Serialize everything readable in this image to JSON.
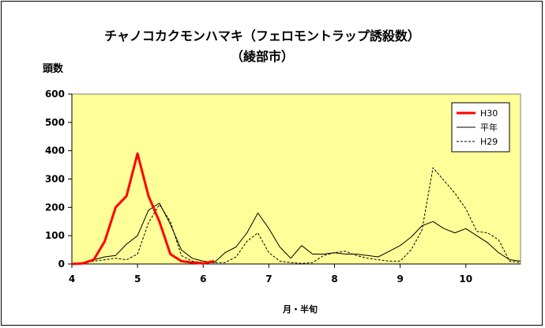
{
  "chart_data": {
    "type": "line",
    "title": "チャノコカクモンハマキ（フェロモントラップ誘殺数）",
    "subtitle": "（綾部市）",
    "ylabel": "頭数",
    "xlabel": "月・半旬",
    "ylim": [
      0,
      600
    ],
    "yticks": [
      "0",
      "100",
      "200",
      "300",
      "400",
      "500",
      "600"
    ],
    "xlim": [
      4,
      10.833
    ],
    "xticks": [
      {
        "value": 4,
        "label": "4"
      },
      {
        "value": 5,
        "label": "5"
      },
      {
        "value": 6,
        "label": "6"
      },
      {
        "value": 7,
        "label": "7"
      },
      {
        "value": 8,
        "label": "8"
      },
      {
        "value": 9,
        "label": "9"
      },
      {
        "value": 10,
        "label": "10"
      }
    ],
    "grid": false,
    "background": "#ffff99",
    "legend_position": "top-right",
    "series": [
      {
        "name": "H30",
        "color": "#ff0000",
        "style": "solid-thick",
        "x": [
          4.0,
          4.167,
          4.333,
          4.5,
          4.667,
          4.833,
          5.0,
          5.167,
          5.333,
          5.5,
          5.667,
          5.833,
          6.0,
          6.167
        ],
        "values": [
          0,
          2,
          15,
          80,
          200,
          240,
          390,
          240,
          150,
          35,
          10,
          5,
          2,
          10
        ]
      },
      {
        "name": "平年",
        "color": "#000000",
        "style": "solid",
        "x": [
          4.0,
          4.167,
          4.333,
          4.5,
          4.667,
          4.833,
          5.0,
          5.167,
          5.333,
          5.5,
          5.667,
          5.833,
          6.0,
          6.167,
          6.333,
          6.5,
          6.667,
          6.833,
          7.0,
          7.167,
          7.333,
          7.5,
          7.667,
          7.833,
          8.0,
          8.167,
          8.333,
          8.5,
          8.667,
          8.833,
          9.0,
          9.167,
          9.333,
          9.5,
          9.667,
          9.833,
          10.0,
          10.167,
          10.333,
          10.5,
          10.667,
          10.833
        ],
        "values": [
          0,
          5,
          15,
          25,
          30,
          70,
          100,
          190,
          215,
          140,
          50,
          20,
          10,
          5,
          40,
          60,
          110,
          180,
          125,
          60,
          20,
          65,
          35,
          35,
          40,
          35,
          35,
          30,
          25,
          45,
          65,
          95,
          135,
          150,
          125,
          110,
          125,
          100,
          75,
          40,
          15,
          10
        ]
      },
      {
        "name": "H29",
        "color": "#000000",
        "style": "dashed",
        "x": [
          4.0,
          4.167,
          4.333,
          4.5,
          4.667,
          4.833,
          5.0,
          5.167,
          5.333,
          5.5,
          5.667,
          5.833,
          6.0,
          6.167,
          6.333,
          6.5,
          6.667,
          6.833,
          7.0,
          7.167,
          7.333,
          7.5,
          7.667,
          7.833,
          8.0,
          8.167,
          8.333,
          8.5,
          8.667,
          8.833,
          9.0,
          9.167,
          9.333,
          9.5,
          9.667,
          9.833,
          10.0,
          10.167,
          10.333,
          10.5,
          10.667,
          10.833
        ],
        "values": [
          0,
          3,
          10,
          15,
          20,
          15,
          35,
          145,
          210,
          150,
          30,
          10,
          5,
          5,
          5,
          25,
          80,
          110,
          40,
          10,
          5,
          2,
          5,
          30,
          40,
          45,
          30,
          20,
          15,
          10,
          10,
          50,
          120,
          340,
          295,
          250,
          195,
          115,
          110,
          85,
          10,
          5
        ]
      }
    ]
  }
}
